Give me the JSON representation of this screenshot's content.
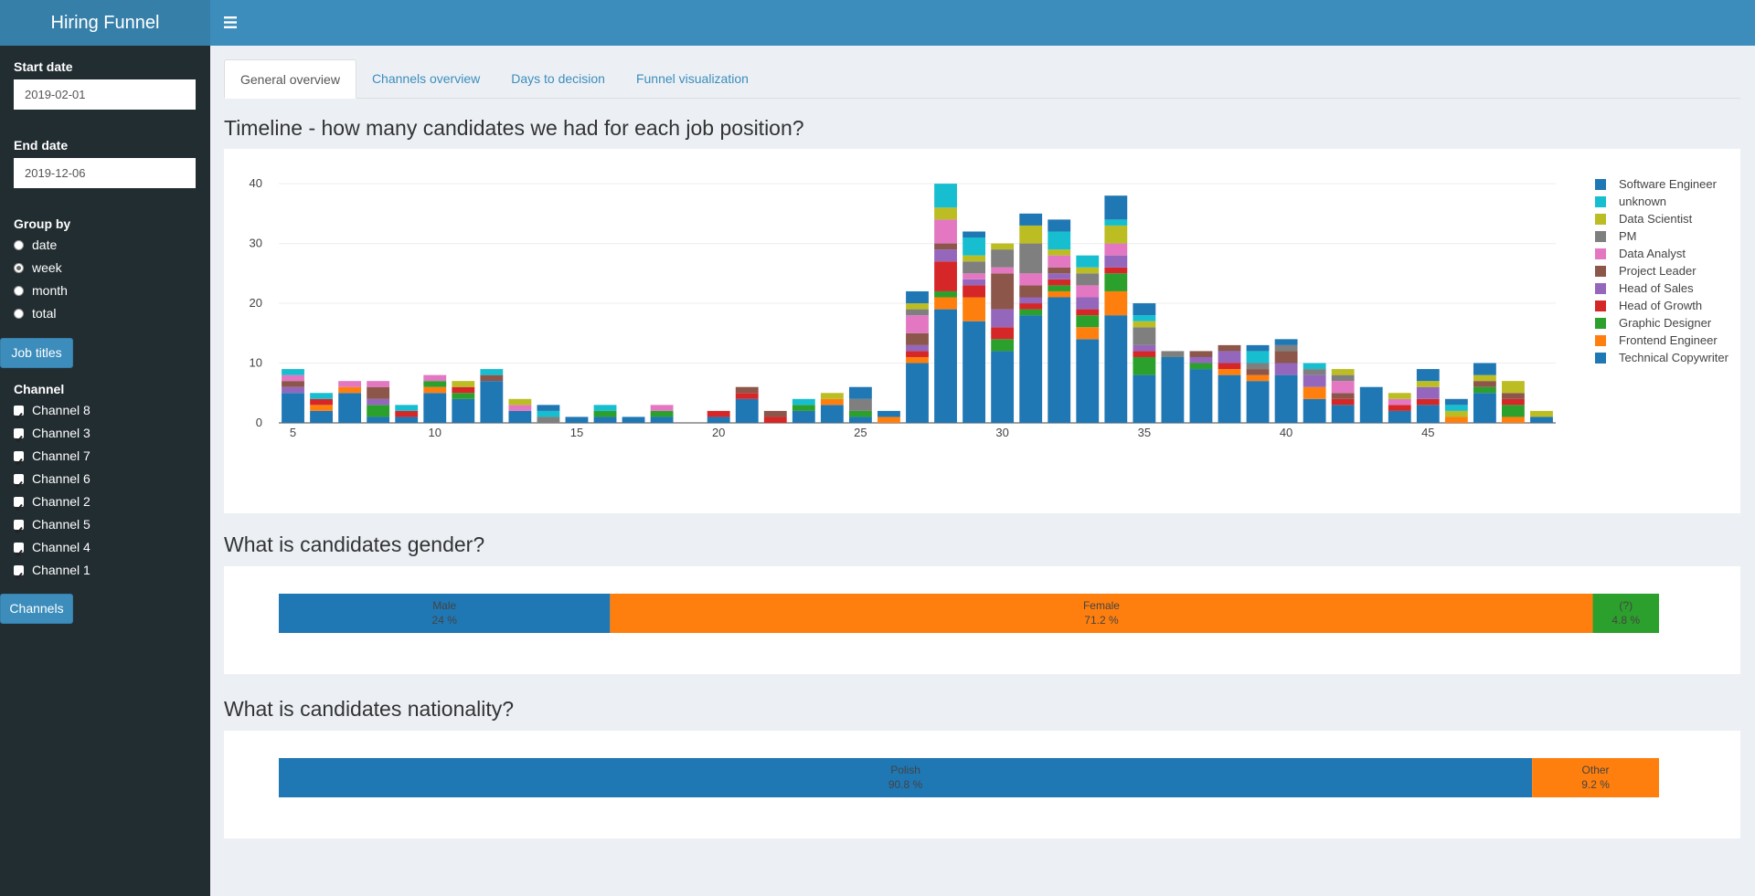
{
  "header": {
    "title": "Hiring Funnel"
  },
  "sidebar": {
    "start_date": {
      "label": "Start date",
      "value": "2019-02-01"
    },
    "end_date": {
      "label": "End date",
      "value": "2019-12-06"
    },
    "group_by": {
      "label": "Group by",
      "options": [
        "date",
        "week",
        "month",
        "total"
      ],
      "selected": 1
    },
    "job_titles_button": "Job titles",
    "channel": {
      "label": "Channel",
      "options": [
        "Channel 8",
        "Channel 3",
        "Channel 7",
        "Channel 6",
        "Channel 2",
        "Channel 5",
        "Channel 4",
        "Channel 1"
      ]
    },
    "channels_button": "Channels"
  },
  "tabs": {
    "items": [
      "General overview",
      "Channels overview",
      "Days to decision",
      "Funnel visualization"
    ],
    "active": 0
  },
  "chart_data": [
    {
      "type": "bar",
      "barmode": "stack",
      "title": "Timeline - how many candidates we had for each job position?",
      "x": [
        5,
        6,
        7,
        8,
        9,
        10,
        11,
        12,
        13,
        14,
        15,
        16,
        17,
        18,
        19,
        20,
        21,
        22,
        23,
        24,
        25,
        26,
        27,
        28,
        29,
        30,
        31,
        32,
        33,
        34,
        35,
        36,
        37,
        38,
        39,
        40,
        41,
        42,
        43,
        44,
        45,
        46,
        47,
        48,
        49
      ],
      "xlim": [
        4.5,
        49.5
      ],
      "xticks": [
        5,
        10,
        15,
        20,
        25,
        30,
        35,
        40,
        45
      ],
      "ylim": [
        0,
        42
      ],
      "yticks": [
        0,
        10,
        20,
        30,
        40
      ],
      "grid": true,
      "legend": "right",
      "series": [
        {
          "name": "Technical Copywriter",
          "color": "#1f77b4",
          "values": [
            5,
            2,
            5,
            1,
            1,
            5,
            4,
            7,
            2,
            0,
            1,
            1,
            1,
            1,
            0,
            1,
            4,
            0,
            2,
            3,
            1,
            0,
            10,
            19,
            17,
            12,
            18,
            21,
            14,
            18,
            8,
            11,
            9,
            8,
            7,
            8,
            4,
            3,
            6,
            2,
            3,
            0,
            5,
            0,
            1
          ]
        },
        {
          "name": "Frontend Engineer",
          "color": "#ff7f0e",
          "values": [
            0,
            1,
            1,
            0,
            0,
            1,
            0,
            0,
            0,
            0,
            0,
            0,
            0,
            0,
            0,
            0,
            0,
            0,
            0,
            1,
            0,
            1,
            1,
            2,
            4,
            0,
            0,
            1,
            2,
            4,
            0,
            0,
            0,
            1,
            1,
            0,
            2,
            0,
            0,
            0,
            0,
            1,
            0,
            1,
            0
          ]
        },
        {
          "name": "Graphic Designer",
          "color": "#2ca02c",
          "values": [
            0,
            0,
            0,
            2,
            0,
            1,
            1,
            0,
            0,
            0,
            0,
            1,
            0,
            1,
            0,
            0,
            0,
            0,
            1,
            0,
            1,
            0,
            0,
            1,
            0,
            2,
            1,
            1,
            2,
            3,
            3,
            0,
            1,
            0,
            0,
            0,
            0,
            0,
            0,
            0,
            0,
            0,
            1,
            2,
            0
          ]
        },
        {
          "name": "Head of Growth",
          "color": "#d62728",
          "values": [
            0,
            1,
            0,
            0,
            1,
            0,
            1,
            0,
            0,
            0,
            0,
            0,
            0,
            0,
            0,
            1,
            1,
            1,
            0,
            0,
            0,
            0,
            1,
            5,
            2,
            2,
            1,
            1,
            1,
            1,
            1,
            0,
            0,
            1,
            0,
            0,
            0,
            1,
            0,
            1,
            1,
            0,
            0,
            1,
            0
          ]
        },
        {
          "name": "Head of Sales",
          "color": "#9467bd",
          "values": [
            1,
            0,
            0,
            1,
            0,
            0,
            0,
            0,
            0,
            0,
            0,
            0,
            0,
            0,
            0,
            0,
            0,
            0,
            0,
            0,
            0,
            0,
            1,
            2,
            1,
            3,
            1,
            1,
            2,
            2,
            1,
            0,
            1,
            2,
            0,
            2,
            2,
            0,
            0,
            0,
            2,
            0,
            0,
            0,
            0
          ]
        },
        {
          "name": "Project Leader",
          "color": "#8c564b",
          "values": [
            1,
            0,
            0,
            2,
            0,
            0,
            0,
            1,
            0,
            0,
            0,
            0,
            0,
            0,
            0,
            0,
            1,
            1,
            0,
            0,
            0,
            0,
            2,
            1,
            0,
            6,
            2,
            1,
            0,
            0,
            0,
            0,
            1,
            1,
            1,
            2,
            0,
            1,
            0,
            0,
            0,
            0,
            1,
            1,
            0
          ]
        },
        {
          "name": "Data Analyst",
          "color": "#e377c2",
          "values": [
            1,
            0,
            1,
            1,
            0,
            1,
            0,
            0,
            1,
            0,
            0,
            0,
            0,
            1,
            0,
            0,
            0,
            0,
            0,
            0,
            0,
            0,
            3,
            4,
            1,
            1,
            2,
            2,
            2,
            2,
            0,
            0,
            0,
            0,
            0,
            0,
            0,
            2,
            0,
            1,
            0,
            0,
            0,
            0,
            0
          ]
        },
        {
          "name": "PM",
          "color": "#7f7f7f",
          "values": [
            0,
            0,
            0,
            0,
            0,
            0,
            0,
            0,
            0,
            1,
            0,
            0,
            0,
            0,
            0,
            0,
            0,
            0,
            0,
            0,
            2,
            0,
            1,
            0,
            2,
            3,
            5,
            0,
            2,
            0,
            3,
            1,
            0,
            0,
            1,
            1,
            1,
            1,
            0,
            0,
            0,
            0,
            0,
            0,
            0
          ]
        },
        {
          "name": "Data Scientist",
          "color": "#bcbd22",
          "values": [
            0,
            0,
            0,
            0,
            0,
            0,
            1,
            0,
            1,
            0,
            0,
            0,
            0,
            0,
            0,
            0,
            0,
            0,
            0,
            1,
            0,
            0,
            1,
            2,
            1,
            1,
            3,
            1,
            1,
            3,
            1,
            0,
            0,
            0,
            0,
            0,
            0,
            1,
            0,
            1,
            1,
            1,
            1,
            2,
            1
          ]
        },
        {
          "name": "unknown",
          "color": "#17becf",
          "values": [
            1,
            1,
            0,
            0,
            1,
            0,
            0,
            1,
            0,
            1,
            0,
            1,
            0,
            0,
            0,
            0,
            0,
            0,
            1,
            0,
            0,
            0,
            0,
            4,
            3,
            0,
            0,
            3,
            2,
            1,
            1,
            0,
            0,
            0,
            2,
            0,
            1,
            0,
            0,
            0,
            0,
            1,
            0,
            0,
            0
          ]
        },
        {
          "name": "Software Engineer",
          "color": "#1f77b4",
          "values": [
            0,
            0,
            0,
            0,
            0,
            0,
            0,
            0,
            0,
            1,
            0,
            0,
            0,
            0,
            0,
            0,
            0,
            0,
            0,
            0,
            2,
            1,
            2,
            0,
            1,
            0,
            2,
            2,
            0,
            4,
            2,
            0,
            0,
            0,
            1,
            1,
            0,
            0,
            0,
            0,
            2,
            1,
            2,
            0,
            0
          ]
        }
      ]
    },
    {
      "type": "hbar",
      "title": "What is candidates gender?",
      "categories": [
        "Male",
        "Female",
        "(?)"
      ],
      "values": [
        24,
        71.2,
        4.8
      ],
      "value_labels": [
        "24 %",
        "71.2 %",
        "4.8 %"
      ],
      "colors": [
        "#1f77b4",
        "#ff7f0e",
        "#2ca02c"
      ],
      "xlim": [
        0,
        100
      ]
    },
    {
      "type": "hbar",
      "title": "What is candidates nationality?",
      "categories": [
        "Polish",
        "Other"
      ],
      "values": [
        90.8,
        9.2
      ],
      "value_labels": [
        "90.8 %",
        "9.2 %"
      ],
      "colors": [
        "#1f77b4",
        "#ff7f0e"
      ],
      "xlim": [
        0,
        100
      ]
    }
  ]
}
